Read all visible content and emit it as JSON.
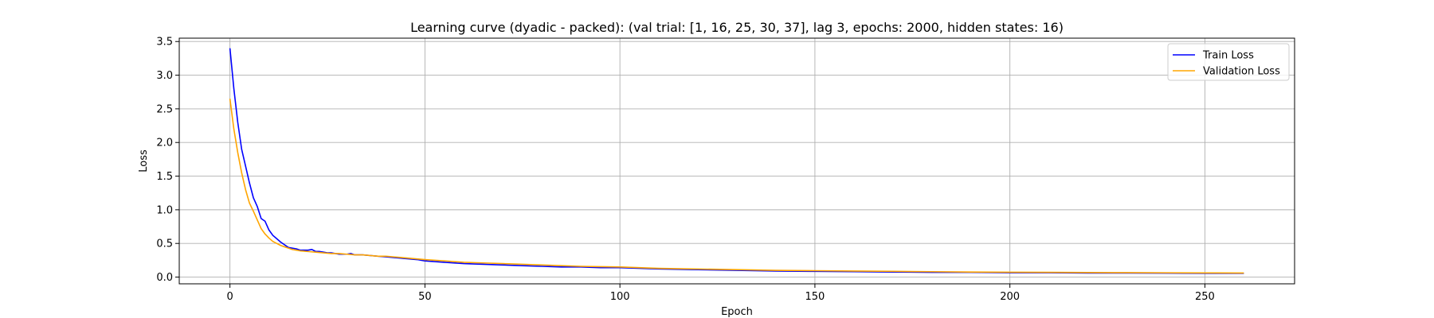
{
  "chart_data": {
    "type": "line",
    "title": "Learning curve (dyadic - packed): (val trial: [1, 16, 25, 30, 37], lag 3, epochs: 2000, hidden states: 16)",
    "xlabel": "Epoch",
    "ylabel": "Loss",
    "xlim": [
      -13,
      273
    ],
    "ylim": [
      -0.1,
      3.55
    ],
    "xticks": [
      0,
      50,
      100,
      150,
      200,
      250
    ],
    "yticks": [
      0.0,
      0.5,
      1.0,
      1.5,
      2.0,
      2.5,
      3.0,
      3.5
    ],
    "ytick_labels": [
      "0.0",
      "0.5",
      "1.0",
      "1.5",
      "2.0",
      "2.5",
      "3.0",
      "3.5"
    ],
    "grid": true,
    "legend_position": "upper right",
    "series": [
      {
        "name": "Train Loss",
        "color": "#0000ff",
        "x": [
          0,
          1,
          2,
          3,
          4,
          5,
          6,
          7,
          8,
          9,
          10,
          11,
          12,
          13,
          14,
          15,
          16,
          17,
          18,
          19,
          20,
          21,
          22,
          23,
          24,
          25,
          26,
          28,
          30,
          31,
          32,
          34,
          36,
          38,
          40,
          42,
          44,
          46,
          48,
          50,
          55,
          60,
          65,
          70,
          75,
          80,
          85,
          90,
          95,
          100,
          110,
          120,
          130,
          140,
          150,
          160,
          170,
          180,
          190,
          200,
          210,
          220,
          230,
          240,
          250,
          260
        ],
        "values": [
          3.4,
          2.8,
          2.3,
          1.9,
          1.65,
          1.4,
          1.18,
          1.05,
          0.87,
          0.83,
          0.7,
          0.62,
          0.57,
          0.52,
          0.48,
          0.44,
          0.43,
          0.42,
          0.4,
          0.4,
          0.4,
          0.41,
          0.38,
          0.38,
          0.37,
          0.36,
          0.36,
          0.34,
          0.34,
          0.35,
          0.33,
          0.33,
          0.32,
          0.31,
          0.3,
          0.29,
          0.28,
          0.27,
          0.26,
          0.24,
          0.22,
          0.2,
          0.19,
          0.18,
          0.17,
          0.16,
          0.15,
          0.15,
          0.14,
          0.14,
          0.12,
          0.11,
          0.1,
          0.09,
          0.085,
          0.08,
          0.075,
          0.07,
          0.07,
          0.065,
          0.065,
          0.06,
          0.06,
          0.058,
          0.055,
          0.055
        ]
      },
      {
        "name": "Validation Loss",
        "color": "#ffa500",
        "x": [
          0,
          1,
          2,
          3,
          4,
          5,
          6,
          7,
          8,
          9,
          10,
          11,
          12,
          13,
          14,
          15,
          16,
          18,
          20,
          22,
          24,
          26,
          28,
          30,
          32,
          34,
          36,
          38,
          40,
          42,
          44,
          46,
          48,
          50,
          55,
          60,
          65,
          70,
          75,
          80,
          85,
          90,
          95,
          100,
          110,
          120,
          130,
          140,
          150,
          160,
          170,
          180,
          190,
          200,
          210,
          220,
          230,
          240,
          250,
          260
        ],
        "values": [
          2.65,
          2.2,
          1.85,
          1.55,
          1.3,
          1.1,
          0.98,
          0.85,
          0.72,
          0.64,
          0.58,
          0.53,
          0.5,
          0.47,
          0.45,
          0.43,
          0.41,
          0.39,
          0.38,
          0.37,
          0.36,
          0.35,
          0.35,
          0.34,
          0.33,
          0.33,
          0.32,
          0.31,
          0.31,
          0.3,
          0.29,
          0.28,
          0.27,
          0.26,
          0.24,
          0.22,
          0.21,
          0.2,
          0.19,
          0.18,
          0.17,
          0.16,
          0.155,
          0.15,
          0.13,
          0.12,
          0.11,
          0.1,
          0.095,
          0.09,
          0.085,
          0.08,
          0.075,
          0.072,
          0.07,
          0.068,
          0.066,
          0.064,
          0.062,
          0.06
        ]
      }
    ]
  }
}
